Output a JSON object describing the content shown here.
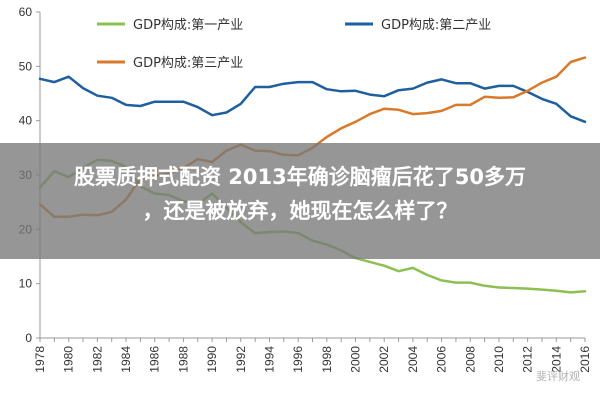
{
  "headline": {
    "line1": "股票质押式配资 2013年确诊脑瘤后花了50多万",
    "line2": "，还是被放弃，她现在怎么样了？"
  },
  "watermark": "斐评财观",
  "chart_data": {
    "type": "line",
    "x": [
      1978,
      1979,
      1980,
      1981,
      1982,
      1983,
      1984,
      1985,
      1986,
      1987,
      1988,
      1989,
      1990,
      1991,
      1992,
      1993,
      1994,
      1995,
      1996,
      1997,
      1998,
      1999,
      2000,
      2001,
      2002,
      2003,
      2004,
      2005,
      2006,
      2007,
      2008,
      2009,
      2010,
      2011,
      2012,
      2013,
      2014,
      2015,
      2016
    ],
    "xlim": [
      1978,
      2016
    ],
    "ylim": [
      0,
      60
    ],
    "yticks": [
      0,
      10,
      20,
      30,
      40,
      50,
      60
    ],
    "xticks": [
      1978,
      1980,
      1982,
      1984,
      1986,
      1988,
      1990,
      1992,
      1994,
      1996,
      1998,
      2000,
      2002,
      2004,
      2006,
      2008,
      2010,
      2012,
      2014,
      2016
    ],
    "grid": false,
    "legend_position": "top",
    "series": [
      {
        "name": "GDP构成:第一产业",
        "color": "#8cc152",
        "values": [
          27.7,
          30.7,
          29.6,
          31.3,
          32.8,
          32.6,
          31.5,
          27.9,
          26.6,
          26.3,
          25.2,
          24.6,
          26.6,
          24.0,
          21.3,
          19.3,
          19.5,
          19.6,
          19.3,
          17.9,
          17.2,
          16.1,
          14.7,
          14.0,
          13.3,
          12.3,
          12.9,
          11.6,
          10.6,
          10.2,
          10.2,
          9.6,
          9.3,
          9.2,
          9.1,
          8.9,
          8.7,
          8.4,
          8.6
        ]
      },
      {
        "name": "GDP构成:第二产业",
        "color": "#1f5fa0",
        "values": [
          47.7,
          47.1,
          48.1,
          46.0,
          44.6,
          44.2,
          42.9,
          42.7,
          43.5,
          43.5,
          43.5,
          42.5,
          41.0,
          41.5,
          43.1,
          46.2,
          46.2,
          46.8,
          47.1,
          47.1,
          45.8,
          45.4,
          45.5,
          44.8,
          44.5,
          45.6,
          45.9,
          47.0,
          47.6,
          46.9,
          46.9,
          45.9,
          46.4,
          46.4,
          45.3,
          44.0,
          43.1,
          40.8,
          39.8
        ]
      },
      {
        "name": "GDP构成:第三产业",
        "color": "#d97a2b",
        "values": [
          24.6,
          22.3,
          22.3,
          22.7,
          22.6,
          23.2,
          25.5,
          29.4,
          29.8,
          30.3,
          31.3,
          32.9,
          32.4,
          34.5,
          35.6,
          34.5,
          34.4,
          33.7,
          33.6,
          35.0,
          37.0,
          38.6,
          39.8,
          41.2,
          42.2,
          42.0,
          41.2,
          41.4,
          41.8,
          42.9,
          42.9,
          44.4,
          44.2,
          44.3,
          45.5,
          47.0,
          48.1,
          50.8,
          51.6
        ]
      }
    ]
  }
}
